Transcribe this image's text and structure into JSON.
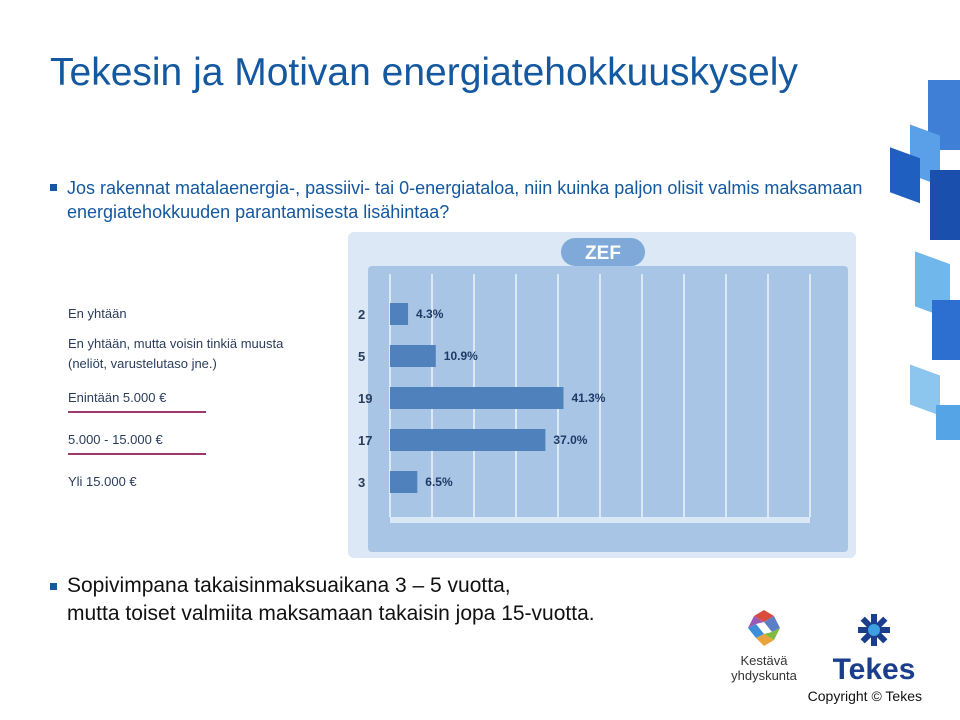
{
  "title": "Tekesin ja Motivan energiatehokkuuskysely",
  "question": "Jos rakennat matalaenergia-, passiivi- tai 0-energiataloa, niin kuinka paljon olisit valmis maksamaan energiatehokkuuden parantamisesta lisähintaa?",
  "answer_line1": "Sopivimpana takaisinmaksuaikana  3 – 5 vuotta,",
  "answer_line2": "mutta toiset valmiita maksamaan takaisin jopa 15-vuotta.",
  "zef_logo": "ZEF",
  "logos": {
    "kestava_line1": "Kestävä",
    "kestava_line2": "yhdyskunta",
    "tekes": "Tekes"
  },
  "copyright": "Copyright © Tekes",
  "colors": {
    "brand_blue": "#1458a0",
    "bar": "#4f82bd",
    "panel": "#a8c5e6",
    "underline": "#9b3a6e"
  },
  "chart_data": {
    "type": "bar",
    "orientation": "horizontal",
    "categories": [
      [
        "En yhtään"
      ],
      [
        "En yhtään, mutta voisin tinkiä muusta",
        "(neliöt, varustelutaso jne.)"
      ],
      [
        "Enintään 5.000 €"
      ],
      [
        "5.000 - 15.000 €"
      ],
      [
        "Yli 15.000 €"
      ]
    ],
    "counts": [
      "2",
      "5",
      "19",
      "17",
      "3"
    ],
    "values": [
      4.3,
      10.9,
      41.3,
      37.0,
      6.5
    ],
    "value_labels": [
      "4.3%",
      "10.9%",
      "41.3%",
      "37.0%",
      "6.5%"
    ],
    "xlim": [
      0,
      100
    ],
    "grid": true,
    "legend": "none"
  }
}
